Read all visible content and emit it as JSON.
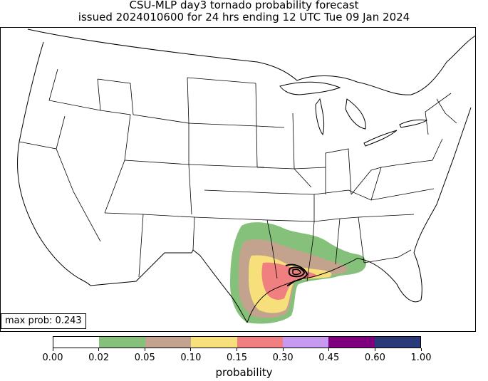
{
  "title_line1": "CSU-MLP day3 tornado probability forecast",
  "title_line2": "issued 2024010600 for 24 hrs ending 12 UTC Tue 09 Jan 2024",
  "max_prob_label": "max prob: 0.243",
  "colorbar": {
    "label": "probability",
    "ticks": [
      "0.00",
      "0.02",
      "0.05",
      "0.10",
      "0.15",
      "0.30",
      "0.45",
      "0.60",
      "1.00"
    ],
    "colors": [
      "#ffffff",
      "#86c17b",
      "#c3a38e",
      "#f7e07c",
      "#f08080",
      "#c79af0",
      "#7f007f",
      "#2a3a78"
    ]
  },
  "forecast_areas": [
    {
      "level": "0.02",
      "color": "#86c17b"
    },
    {
      "level": "0.05",
      "color": "#c3a38e"
    },
    {
      "level": "0.10",
      "color": "#f7e07c"
    },
    {
      "level": "0.15",
      "color": "#f08080"
    }
  ]
}
